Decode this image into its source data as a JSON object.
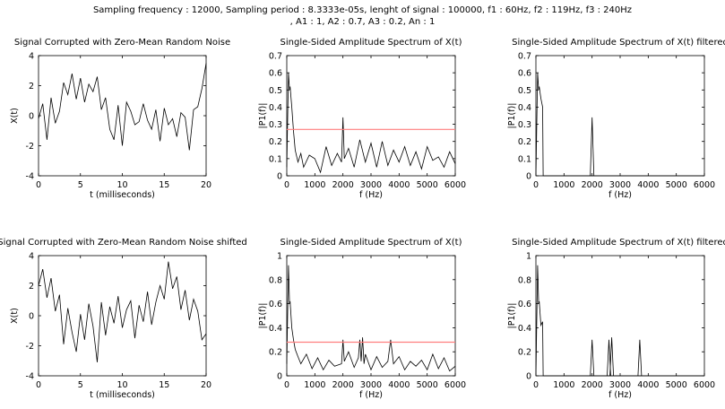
{
  "figure": {
    "title_line1": "Sampling frequency : 12000, Sampling period : 8.3333e-05s, lenght of signal : 100000, f1 : 60Hz, f2 : 119Hz, f3 : 240Hz",
    "title_line2": ", A1 : 1, A2 : 0.7, A3 : 0.2, An : 1"
  },
  "chart_data": [
    {
      "id": "p1",
      "type": "line",
      "title": "Signal Corrupted with Zero-Mean Random Noise",
      "xlabel": "t (milliseconds)",
      "ylabel": "X(t)",
      "xlim": [
        0,
        20
      ],
      "ylim": [
        -4,
        4
      ],
      "xticks": [
        0,
        5,
        10,
        15,
        20
      ],
      "yticks": [
        -4,
        -2,
        0,
        2,
        4
      ],
      "series": [
        {
          "color": "#000000",
          "x": [
            0,
            0.5,
            1,
            1.5,
            2,
            2.5,
            3,
            3.5,
            4,
            4.5,
            5,
            5.5,
            6,
            6.5,
            7,
            7.5,
            8,
            8.5,
            9,
            9.5,
            10,
            10.5,
            11,
            11.5,
            12,
            12.5,
            13,
            13.5,
            14,
            14.5,
            15,
            15.5,
            16,
            16.5,
            17,
            17.5,
            18,
            18.5,
            19,
            19.5,
            20
          ],
          "y": [
            -0.2,
            0.8,
            -1.6,
            1.2,
            -0.5,
            0.3,
            2.2,
            1.4,
            2.8,
            1.1,
            2.5,
            0.9,
            2.1,
            1.6,
            2.6,
            0.4,
            1.2,
            -0.9,
            -1.6,
            0.7,
            -2.0,
            0.9,
            0.3,
            -0.6,
            -0.4,
            0.8,
            -0.3,
            -0.9,
            0.4,
            -1.7,
            0.5,
            -0.6,
            -0.2,
            -1.4,
            0.2,
            -0.1,
            -2.3,
            0.4,
            0.6,
            1.8,
            3.5
          ]
        }
      ]
    },
    {
      "id": "p2",
      "type": "line",
      "title": "Single-Sided Amplitude Spectrum of X(t)",
      "xlabel": "f (Hz)",
      "ylabel": "|P1(f)|",
      "xlim": [
        0,
        6000
      ],
      "ylim": [
        0,
        0.7
      ],
      "xticks": [
        0,
        1000,
        2000,
        3000,
        4000,
        5000,
        6000
      ],
      "yticks": [
        0,
        0.1,
        0.2,
        0.3,
        0.4,
        0.5,
        0.6,
        0.7
      ],
      "series": [
        {
          "color": "#000000",
          "x": [
            0,
            60,
            100,
            119,
            180,
            240,
            300,
            400,
            500,
            600,
            800,
            1000,
            1200,
            1400,
            1600,
            1800,
            1950,
            2000,
            2050,
            2200,
            2400,
            2600,
            2800,
            3000,
            3200,
            3400,
            3600,
            3800,
            4000,
            4200,
            4400,
            4600,
            4800,
            5000,
            5200,
            5400,
            5600,
            5800,
            6000
          ],
          "y": [
            0.05,
            0.6,
            0.5,
            0.52,
            0.4,
            0.26,
            0.15,
            0.08,
            0.13,
            0.05,
            0.12,
            0.1,
            0.02,
            0.17,
            0.06,
            0.13,
            0.08,
            0.34,
            0.1,
            0.16,
            0.05,
            0.21,
            0.08,
            0.19,
            0.05,
            0.2,
            0.06,
            0.15,
            0.08,
            0.17,
            0.06,
            0.14,
            0.04,
            0.17,
            0.09,
            0.11,
            0.05,
            0.14,
            0.07
          ]
        },
        {
          "name": "",
          "color": "#ff7f7f",
          "x": [
            0,
            6000
          ],
          "y": [
            0.27,
            0.27
          ]
        }
      ]
    },
    {
      "id": "p3",
      "type": "line",
      "title": "Single-Sided Amplitude Spectrum of X(t) filtered",
      "xlabel": "f (Hz)",
      "ylabel": "|P1(f)|",
      "xlim": [
        0,
        6000
      ],
      "ylim": [
        0,
        0.7
      ],
      "xticks": [
        0,
        1000,
        2000,
        3000,
        4000,
        5000,
        6000
      ],
      "yticks": [
        0,
        0.1,
        0.2,
        0.3,
        0.4,
        0.5,
        0.6,
        0.7
      ],
      "series": [
        {
          "color": "#000000",
          "x": [
            0,
            60,
            100,
            119,
            180,
            240,
            260,
            6000
          ],
          "y": [
            0,
            0.6,
            0.5,
            0.52,
            0.45,
            0.4,
            0,
            0
          ],
          "spikes": [
            {
              "x": 2000,
              "y": 0.34
            }
          ]
        }
      ]
    },
    {
      "id": "p4",
      "type": "line",
      "title": "Signal Corrupted with Zero-Mean Random Noise shifted",
      "xlabel": "t (milliseconds)",
      "ylabel": "X(t)",
      "xlim": [
        0,
        20
      ],
      "ylim": [
        -4,
        4
      ],
      "xticks": [
        0,
        5,
        10,
        15,
        20
      ],
      "yticks": [
        -4,
        -2,
        0,
        2,
        4
      ],
      "series": [
        {
          "color": "#000000",
          "x": [
            0,
            0.5,
            1,
            1.5,
            2,
            2.5,
            3,
            3.5,
            4,
            4.5,
            5,
            5.5,
            6,
            6.5,
            7,
            7.5,
            8,
            8.5,
            9,
            9.5,
            10,
            10.5,
            11,
            11.5,
            12,
            12.5,
            13,
            13.5,
            14,
            14.5,
            15,
            15.5,
            16,
            16.5,
            17,
            17.5,
            18,
            18.5,
            19,
            19.5,
            20
          ],
          "y": [
            2.0,
            3.1,
            1.2,
            2.5,
            0.3,
            1.4,
            -1.9,
            0.5,
            -1.1,
            -2.4,
            0.1,
            -1.6,
            0.8,
            -0.7,
            -3.1,
            0.9,
            -1.3,
            0.6,
            -0.5,
            1.3,
            -0.8,
            0.4,
            1.0,
            -1.5,
            0.7,
            -0.4,
            1.6,
            -0.6,
            0.9,
            2.0,
            1.1,
            3.6,
            1.8,
            2.6,
            0.4,
            1.7,
            -0.3,
            1.1,
            0.3,
            -1.6,
            -1.2
          ]
        }
      ]
    },
    {
      "id": "p5",
      "type": "line",
      "title": "Single-Sided Amplitude Spectrum of X(t)",
      "xlabel": "f (Hz)",
      "ylabel": "|P1(f)|",
      "xlim": [
        0,
        6000
      ],
      "ylim": [
        0,
        1
      ],
      "xticks": [
        0,
        1000,
        2000,
        3000,
        4000,
        5000,
        6000
      ],
      "yticks": [
        0,
        0.2,
        0.4,
        0.6,
        0.8,
        1
      ],
      "series": [
        {
          "color": "#000000",
          "x": [
            0,
            60,
            100,
            119,
            180,
            240,
            300,
            400,
            500,
            700,
            900,
            1100,
            1300,
            1500,
            1700,
            1950,
            2000,
            2050,
            2200,
            2400,
            2550,
            2600,
            2650,
            2700,
            2750,
            2800,
            3000,
            3200,
            3400,
            3600,
            3700,
            3800,
            4000,
            4200,
            4400,
            4600,
            4800,
            5000,
            5200,
            5400,
            5600,
            5800,
            6000
          ],
          "y": [
            0.1,
            0.92,
            0.6,
            0.62,
            0.4,
            0.3,
            0.22,
            0.16,
            0.1,
            0.18,
            0.06,
            0.15,
            0.05,
            0.13,
            0.08,
            0.1,
            0.3,
            0.12,
            0.2,
            0.07,
            0.15,
            0.3,
            0.12,
            0.32,
            0.1,
            0.18,
            0.05,
            0.16,
            0.07,
            0.12,
            0.3,
            0.1,
            0.16,
            0.05,
            0.12,
            0.08,
            0.13,
            0.05,
            0.18,
            0.06,
            0.15,
            0.04,
            0.08
          ]
        },
        {
          "name": "",
          "color": "#ff7f7f",
          "x": [
            0,
            6000
          ],
          "y": [
            0.28,
            0.28
          ]
        }
      ]
    },
    {
      "id": "p6",
      "type": "line",
      "title": "Single-Sided Amplitude Spectrum of X(t) filtered",
      "xlabel": "f (Hz)",
      "ylabel": "|P1(f)|",
      "xlim": [
        0,
        6000
      ],
      "ylim": [
        0,
        1
      ],
      "xticks": [
        0,
        1000,
        2000,
        3000,
        4000,
        5000,
        6000
      ],
      "yticks": [
        0,
        0.2,
        0.4,
        0.6,
        0.8,
        1
      ],
      "series": [
        {
          "color": "#000000",
          "x": [
            0,
            60,
            100,
            119,
            180,
            240,
            260,
            6000
          ],
          "y": [
            0,
            0.92,
            0.6,
            0.62,
            0.42,
            0.45,
            0,
            0
          ],
          "spikes": [
            {
              "x": 2000,
              "y": 0.3
            },
            {
              "x": 2600,
              "y": 0.3
            },
            {
              "x": 2700,
              "y": 0.32
            },
            {
              "x": 3700,
              "y": 0.3
            }
          ]
        }
      ]
    }
  ]
}
